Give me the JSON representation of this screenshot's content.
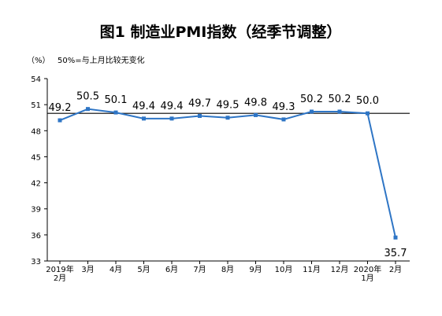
{
  "chart_data": {
    "type": "line",
    "title": "图1 制造业PMI指数（经季节调整）",
    "unit_label": "（%）",
    "reference_label": "50%=与上月比较无变化",
    "reference_value": 50,
    "categories": [
      [
        "2019年",
        "2月"
      ],
      [
        "3月"
      ],
      [
        "4月"
      ],
      [
        "5月"
      ],
      [
        "6月"
      ],
      [
        "7月"
      ],
      [
        "8月"
      ],
      [
        "9月"
      ],
      [
        "10月"
      ],
      [
        "11月"
      ],
      [
        "12月"
      ],
      [
        "2020年",
        "1月"
      ],
      [
        "2月"
      ]
    ],
    "values": [
      49.2,
      50.5,
      50.1,
      49.4,
      49.4,
      49.7,
      49.5,
      49.8,
      49.3,
      50.2,
      50.2,
      50.0,
      35.7
    ],
    "data_labels": [
      "49.2",
      "50.5",
      "50.1",
      "49.4",
      "49.4",
      "49.7",
      "49.5",
      "49.8",
      "49.3",
      "50.2",
      "50.2",
      "50.0",
      "35.7"
    ],
    "yticks": [
      33,
      36,
      39,
      42,
      45,
      48,
      51,
      54
    ],
    "ylim": [
      33,
      54
    ],
    "grid": false,
    "colors": {
      "line": "#2E75C5",
      "axis": "#000000",
      "reference": "#000000"
    }
  }
}
